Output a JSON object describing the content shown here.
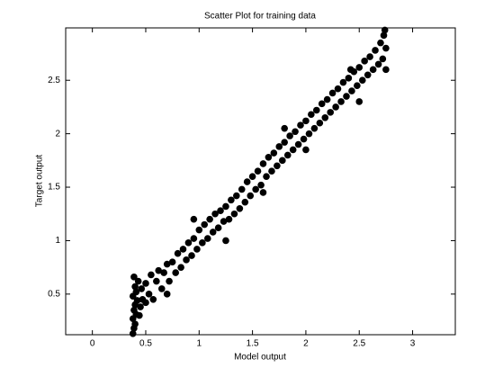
{
  "chart_data": {
    "type": "scatter",
    "title": "Scatter Plot for training data",
    "x_label": "Model output",
    "y_label": "Target output",
    "color": "#000000",
    "x": [
      0.38,
      0.39,
      0.4,
      0.38,
      0.41,
      0.39,
      0.4,
      0.42,
      0.38,
      0.41,
      0.4,
      0.43,
      0.39,
      0.45,
      0.47,
      0.44,
      0.46,
      0.5,
      0.5,
      0.53,
      0.55,
      0.57,
      0.6,
      0.62,
      0.65,
      0.67,
      0.7,
      0.72,
      0.75,
      0.78,
      0.8,
      0.83,
      0.85,
      0.88,
      0.9,
      0.93,
      0.95,
      0.98,
      1.0,
      1.03,
      1.05,
      1.08,
      1.1,
      1.13,
      1.15,
      1.18,
      1.2,
      1.23,
      1.25,
      1.28,
      1.3,
      1.33,
      1.35,
      1.38,
      1.4,
      1.43,
      1.45,
      1.48,
      1.5,
      1.53,
      1.55,
      1.58,
      1.6,
      1.63,
      1.65,
      1.68,
      1.7,
      1.73,
      1.75,
      1.78,
      1.8,
      1.83,
      1.85,
      1.88,
      1.9,
      1.93,
      1.95,
      1.98,
      2.0,
      2.03,
      2.05,
      2.08,
      2.1,
      2.13,
      2.15,
      2.18,
      2.2,
      2.23,
      2.25,
      2.28,
      2.3,
      2.33,
      2.35,
      2.38,
      2.4,
      2.43,
      2.45,
      2.48,
      2.5,
      2.53,
      2.55,
      2.58,
      2.6,
      2.63,
      2.65,
      2.68,
      2.7,
      2.72,
      2.73,
      2.74,
      2.75,
      2.75,
      2.5,
      2.42,
      1.25,
      0.95,
      1.6,
      2.0,
      0.7,
      1.8
    ],
    "y": [
      0.13,
      0.18,
      0.22,
      0.27,
      0.31,
      0.35,
      0.4,
      0.44,
      0.48,
      0.52,
      0.57,
      0.62,
      0.66,
      0.38,
      0.45,
      0.3,
      0.55,
      0.42,
      0.6,
      0.5,
      0.68,
      0.45,
      0.62,
      0.72,
      0.55,
      0.7,
      0.78,
      0.62,
      0.8,
      0.7,
      0.88,
      0.75,
      0.92,
      0.82,
      0.98,
      0.86,
      1.02,
      0.92,
      1.1,
      0.98,
      1.15,
      1.02,
      1.2,
      1.08,
      1.25,
      1.12,
      1.28,
      1.18,
      1.32,
      1.2,
      1.38,
      1.25,
      1.42,
      1.3,
      1.48,
      1.36,
      1.55,
      1.42,
      1.6,
      1.48,
      1.65,
      1.52,
      1.72,
      1.6,
      1.78,
      1.65,
      1.82,
      1.7,
      1.88,
      1.75,
      1.92,
      1.8,
      1.98,
      1.85,
      2.02,
      1.9,
      2.08,
      1.95,
      2.12,
      2.0,
      2.18,
      2.05,
      2.22,
      2.1,
      2.28,
      2.15,
      2.32,
      2.2,
      2.38,
      2.25,
      2.42,
      2.3,
      2.48,
      2.35,
      2.52,
      2.4,
      2.58,
      2.45,
      2.62,
      2.5,
      2.68,
      2.55,
      2.72,
      2.6,
      2.78,
      2.65,
      2.85,
      2.7,
      2.92,
      2.97,
      2.6,
      2.8,
      2.3,
      2.6,
      1.0,
      1.2,
      1.45,
      1.85,
      0.5,
      2.05
    ],
    "xlim": [
      -0.25,
      3.4
    ],
    "xticks": [
      0,
      0.5,
      1,
      1.5,
      2,
      2.5,
      3
    ],
    "ylim": [
      0.12,
      2.99
    ],
    "yticks": [
      0.5,
      1,
      1.5,
      2,
      2.5
    ]
  }
}
